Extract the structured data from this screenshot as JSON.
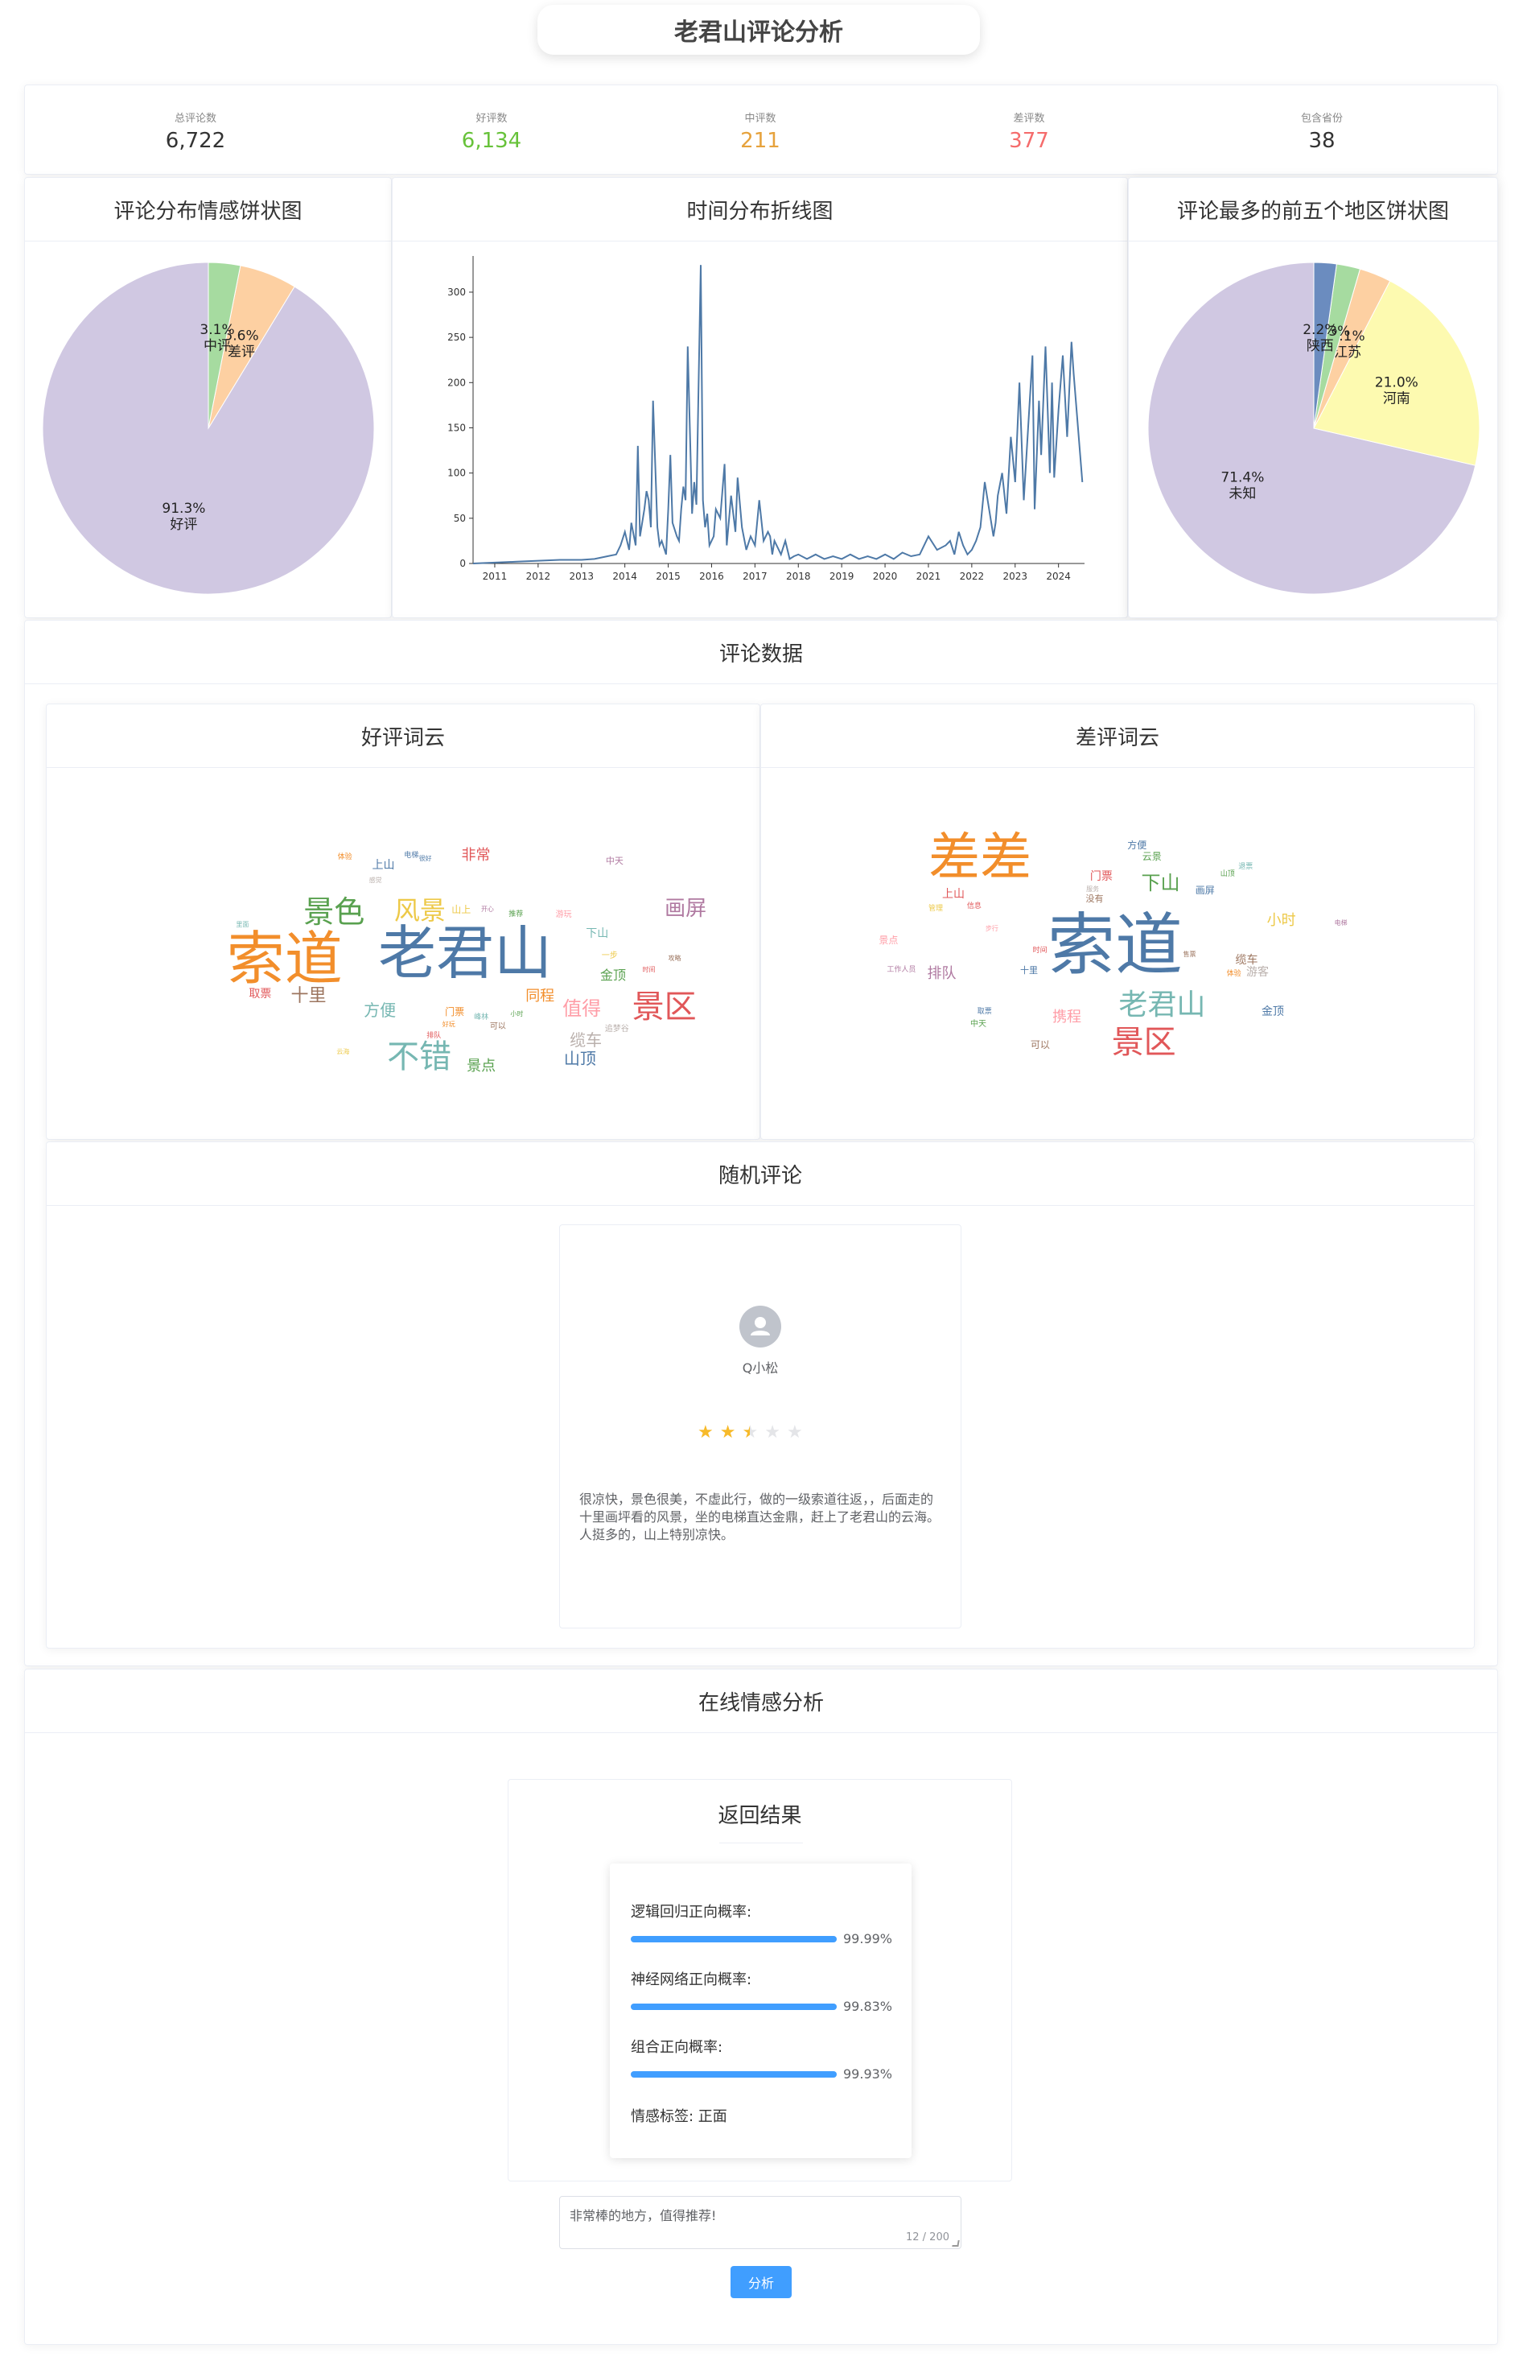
{
  "page": {
    "title": "老君山评论分析"
  },
  "stats": [
    {
      "label": "总评论数",
      "value": "6,722",
      "color": "#333333"
    },
    {
      "label": "好评数",
      "value": "6,134",
      "color": "#67c23a"
    },
    {
      "label": "中评数",
      "value": "211",
      "color": "#e6a23c"
    },
    {
      "label": "差评数",
      "value": "377",
      "color": "#f56c6c"
    },
    {
      "label": "包含省份",
      "value": "38",
      "color": "#333333"
    }
  ],
  "sentiment_card": {
    "title": "评论分布情感饼状图"
  },
  "time_card": {
    "title": "时间分布折线图"
  },
  "region_card": {
    "title": "评论最多的前五个地区饼状图"
  },
  "comment_data": {
    "title": "评论数据"
  },
  "wordcloud": {
    "good_title": "好评词云",
    "bad_title": "差评词云"
  },
  "random_comment": {
    "title": "随机评论",
    "user": "Q小松",
    "rating": 2.5,
    "text": "很凉快，景色很美，不虚此行，做的一级索道往返，，后面走的十里画坪看的风景，坐的电梯直达金鼎，赶上了老君山的云海。人挺多的，山上特别凉快。"
  },
  "online": {
    "title": "在线情感分析",
    "result_title": "返回结果",
    "lr_label": "逻辑回归正向概率:",
    "lr_value": "99.99%",
    "nn_label": "神经网络正向概率:",
    "nn_value": "99.83%",
    "combo_label": "组合正向概率:",
    "combo_value": "99.93%",
    "tag_label": "情感标签: 正面",
    "input_value": "非常棒的地方，值得推荐!",
    "counter": "12 / 200",
    "button": "分析"
  },
  "chart_data": [
    {
      "type": "pie",
      "title": "",
      "labels": [
        "好评",
        "差评",
        "中评"
      ],
      "values": [
        91.3,
        5.6,
        3.1
      ],
      "display": [
        "91.3%",
        "5.6%",
        "3.1%"
      ],
      "colors": [
        "#d0c8e2",
        "#fdd0a2",
        "#a6dba0"
      ]
    },
    {
      "type": "line",
      "title": "",
      "xlabel": "",
      "ylabel": "",
      "xticks": [
        "2011",
        "2012",
        "2013",
        "2014",
        "2015",
        "2016",
        "2017",
        "2018",
        "2019",
        "2020",
        "2021",
        "2022",
        "2023",
        "2024"
      ],
      "yticks": [
        0,
        50,
        100,
        150,
        200,
        250,
        300
      ],
      "xlim": [
        2010.5,
        2024.6
      ],
      "ylim": [
        0,
        340
      ],
      "series": [
        {
          "x": [
            2010.5,
            2011,
            2011.5,
            2012,
            2012.5,
            2013,
            2013.3,
            2013.6,
            2013.8,
            2013.9,
            2014.0,
            2014.1,
            2014.15,
            2014.25,
            2014.3,
            2014.35,
            2014.45,
            2014.5,
            2014.55,
            2014.6,
            2014.65,
            2014.75,
            2014.8,
            2014.85,
            2014.95,
            2015.0,
            2015.05,
            2015.1,
            2015.2,
            2015.25,
            2015.3,
            2015.35,
            2015.4,
            2015.45,
            2015.55,
            2015.6,
            2015.65,
            2015.75,
            2015.8,
            2015.85,
            2015.9,
            2015.95,
            2016.05,
            2016.1,
            2016.2,
            2016.3,
            2016.35,
            2016.45,
            2016.55,
            2016.6,
            2016.7,
            2016.8,
            2016.9,
            2017.0,
            2017.1,
            2017.2,
            2017.3,
            2017.35,
            2017.4,
            2017.45,
            2017.55,
            2017.6,
            2017.7,
            2017.8,
            2017.9,
            2018.0,
            2018.2,
            2018.4,
            2018.6,
            2018.8,
            2019.0,
            2019.2,
            2019.4,
            2019.6,
            2019.8,
            2020.0,
            2020.2,
            2020.4,
            2020.6,
            2020.8,
            2021.0,
            2021.2,
            2021.4,
            2021.5,
            2021.6,
            2021.7,
            2021.8,
            2021.9,
            2022.0,
            2022.1,
            2022.2,
            2022.3,
            2022.4,
            2022.5,
            2022.55,
            2022.6,
            2022.7,
            2022.8,
            2022.9,
            2023.0,
            2023.1,
            2023.2,
            2023.3,
            2023.4,
            2023.45,
            2023.55,
            2023.6,
            2023.7,
            2023.8,
            2023.85,
            2023.9,
            2024.0,
            2024.1,
            2024.2,
            2024.3,
            2024.35,
            2024.4,
            2024.5,
            2024.55
          ],
          "y": [
            0,
            1,
            2,
            3,
            4,
            4,
            5,
            8,
            10,
            20,
            35,
            15,
            45,
            20,
            130,
            30,
            60,
            80,
            70,
            40,
            180,
            40,
            20,
            25,
            10,
            60,
            120,
            45,
            30,
            25,
            60,
            85,
            70,
            240,
            55,
            90,
            65,
            330,
            70,
            40,
            55,
            20,
            30,
            60,
            50,
            110,
            20,
            75,
            35,
            95,
            40,
            15,
            30,
            20,
            70,
            25,
            35,
            30,
            10,
            25,
            15,
            10,
            25,
            5,
            8,
            10,
            5,
            10,
            5,
            8,
            5,
            10,
            5,
            8,
            5,
            10,
            5,
            12,
            8,
            10,
            30,
            15,
            20,
            25,
            10,
            35,
            20,
            10,
            15,
            25,
            40,
            90,
            60,
            30,
            45,
            75,
            100,
            55,
            140,
            90,
            200,
            70,
            150,
            230,
            60,
            180,
            120,
            240,
            100,
            200,
            95,
            170,
            230,
            140,
            245,
            210,
            180,
            120,
            90
          ]
        }
      ]
    },
    {
      "type": "pie",
      "title": "",
      "labels": [
        "未知",
        "河南",
        "江苏",
        "",
        "陕西"
      ],
      "values": [
        71.4,
        21.0,
        3.1,
        2.3,
        2.2
      ],
      "display": [
        "71.4%",
        "21.0%",
        "3.1%",
        "2.3%",
        "2.2%"
      ],
      "colors": [
        "#d0c8e2",
        "#fdfab0",
        "#fdd0a2",
        "#a6dba0",
        "#6b8cbf"
      ]
    }
  ],
  "wordcloud_words": {
    "good": [
      {
        "t": "老君山",
        "s": 72,
        "c": "#4e79a7"
      },
      {
        "t": "索道",
        "s": 72,
        "c": "#f28e2b"
      },
      {
        "t": "景区",
        "s": 40,
        "c": "#e15759"
      },
      {
        "t": "景色",
        "s": 38,
        "c": "#59a14f"
      },
      {
        "t": "不错",
        "s": 40,
        "c": "#76b7b2"
      },
      {
        "t": "风景",
        "s": 32,
        "c": "#edc948"
      },
      {
        "t": "画屏",
        "s": 26,
        "c": "#b07aa1"
      },
      {
        "t": "值得",
        "s": 24,
        "c": "#ff9da7"
      },
      {
        "t": "十里",
        "s": 22,
        "c": "#9c755f"
      },
      {
        "t": "山顶",
        "s": 20,
        "c": "#4e79a7"
      },
      {
        "t": "缆车",
        "s": 20,
        "c": "#bab0ac"
      },
      {
        "t": "方便",
        "s": 20,
        "c": "#76b7b2"
      },
      {
        "t": "景点",
        "s": 18,
        "c": "#59a14f"
      },
      {
        "t": "非常",
        "s": 18,
        "c": "#e15759"
      },
      {
        "t": "同程",
        "s": 18,
        "c": "#f28e2b"
      },
      {
        "t": "金顶",
        "s": 16,
        "c": "#59a14f"
      },
      {
        "t": "上山",
        "s": 14,
        "c": "#4e79a7"
      },
      {
        "t": "下山",
        "s": 14,
        "c": "#76b7b2"
      },
      {
        "t": "取票",
        "s": 14,
        "c": "#e15759"
      },
      {
        "t": "门票",
        "s": 12,
        "c": "#f28e2b"
      },
      {
        "t": "山上",
        "s": 12,
        "c": "#edc948"
      },
      {
        "t": "中天",
        "s": 11,
        "c": "#b07aa1"
      },
      {
        "t": "可以",
        "s": 10,
        "c": "#9c755f"
      },
      {
        "t": "一步",
        "s": 10,
        "c": "#edc948"
      },
      {
        "t": "追梦谷",
        "s": 10,
        "c": "#bab0ac"
      },
      {
        "t": "游玩",
        "s": 10,
        "c": "#ff9da7"
      },
      {
        "t": "电梯",
        "s": 9,
        "c": "#4e79a7"
      },
      {
        "t": "体验",
        "s": 9,
        "c": "#f28e2b"
      },
      {
        "t": "推荐",
        "s": 9,
        "c": "#59a14f"
      },
      {
        "t": "排队",
        "s": 9,
        "c": "#e15759"
      },
      {
        "t": "峰林",
        "s": 9,
        "c": "#76b7b2"
      },
      {
        "t": "开心",
        "s": 8,
        "c": "#b07aa1"
      },
      {
        "t": "攻略",
        "s": 8,
        "c": "#9c755f"
      },
      {
        "t": "云海",
        "s": 8,
        "c": "#edc948"
      },
      {
        "t": "很好",
        "s": 8,
        "c": "#4e79a7"
      },
      {
        "t": "好玩",
        "s": 8,
        "c": "#f28e2b"
      },
      {
        "t": "小时",
        "s": 8,
        "c": "#59a14f"
      },
      {
        "t": "时间",
        "s": 8,
        "c": "#e15759"
      },
      {
        "t": "里面",
        "s": 8,
        "c": "#76b7b2"
      },
      {
        "t": "感觉",
        "s": 8,
        "c": "#bab0ac"
      }
    ],
    "bad": [
      {
        "t": "索道",
        "s": 84,
        "c": "#4e79a7"
      },
      {
        "t": "差差",
        "s": 64,
        "c": "#f28e2b"
      },
      {
        "t": "景区",
        "s": 40,
        "c": "#e15759"
      },
      {
        "t": "老君山",
        "s": 36,
        "c": "#76b7b2"
      },
      {
        "t": "下山",
        "s": 24,
        "c": "#59a14f"
      },
      {
        "t": "小时",
        "s": 18,
        "c": "#edc948"
      },
      {
        "t": "携程",
        "s": 18,
        "c": "#ff9da7"
      },
      {
        "t": "排队",
        "s": 18,
        "c": "#b07aa1"
      },
      {
        "t": "金顶",
        "s": 14,
        "c": "#4e79a7"
      },
      {
        "t": "缆车",
        "s": 14,
        "c": "#9c755f"
      },
      {
        "t": "上山",
        "s": 14,
        "c": "#e15759"
      },
      {
        "t": "门票",
        "s": 14,
        "c": "#e15759"
      },
      {
        "t": "游客",
        "s": 14,
        "c": "#bab0ac"
      },
      {
        "t": "云景",
        "s": 12,
        "c": "#59a14f"
      },
      {
        "t": "画屏",
        "s": 12,
        "c": "#4e79a7"
      },
      {
        "t": "方便",
        "s": 12,
        "c": "#4e79a7"
      },
      {
        "t": "可以",
        "s": 12,
        "c": "#9c755f"
      },
      {
        "t": "景点",
        "s": 12,
        "c": "#ff9da7"
      },
      {
        "t": "十里",
        "s": 11,
        "c": "#4e79a7"
      },
      {
        "t": "没有",
        "s": 11,
        "c": "#9c755f"
      },
      {
        "t": "中天",
        "s": 10,
        "c": "#59a14f"
      },
      {
        "t": "工作人员",
        "s": 9,
        "c": "#b07aa1"
      },
      {
        "t": "体验",
        "s": 9,
        "c": "#f28e2b"
      },
      {
        "t": "时间",
        "s": 9,
        "c": "#e15759"
      },
      {
        "t": "信息",
        "s": 9,
        "c": "#e15759"
      },
      {
        "t": "退票",
        "s": 9,
        "c": "#76b7b2"
      },
      {
        "t": "山顶",
        "s": 9,
        "c": "#59a14f"
      },
      {
        "t": "管理",
        "s": 9,
        "c": "#edc948"
      },
      {
        "t": "取票",
        "s": 9,
        "c": "#4e79a7"
      },
      {
        "t": "步行",
        "s": 8,
        "c": "#ff9da7"
      },
      {
        "t": "服务",
        "s": 8,
        "c": "#bab0ac"
      },
      {
        "t": "售票",
        "s": 8,
        "c": "#9c755f"
      },
      {
        "t": "电梯",
        "s": 8,
        "c": "#b07aa1"
      }
    ]
  },
  "colors": {
    "primary": "#409eff",
    "star": "#f7ba2a",
    "border": "#ebeef5"
  }
}
